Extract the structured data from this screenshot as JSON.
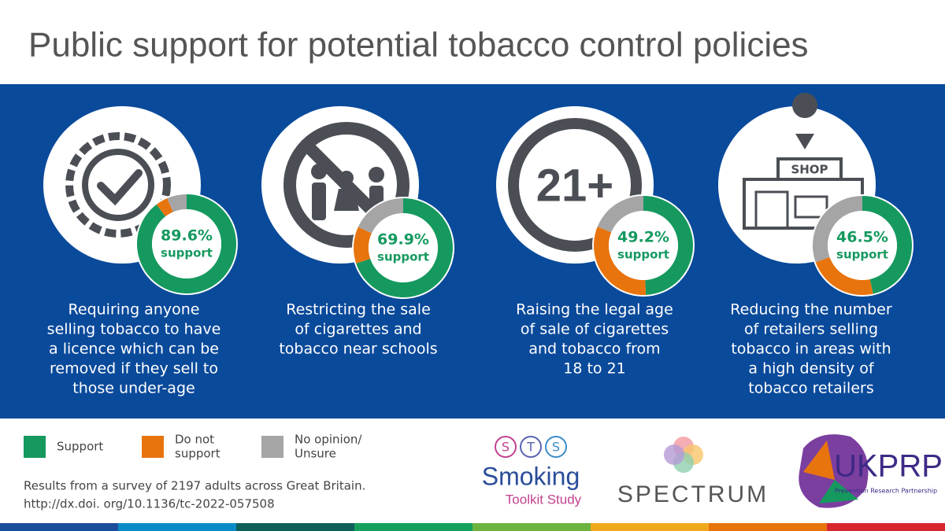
{
  "title": "Public support for potential tobacco control policies",
  "legend": {
    "categories": [
      [
        "Support"
      ],
      [
        "Do not",
        "support"
      ],
      [
        "No opinion/",
        "Unsure"
      ]
    ],
    "colors": [
      "#15995f",
      "#e8740e",
      "#a5a5a5"
    ]
  },
  "icon_texts": {
    "age": "21+",
    "shop": "SHOP"
  },
  "chart_data": [
    {
      "type": "donut",
      "values": [
        89.6,
        4,
        6.4
      ],
      "value_labels": [
        "89.6%",
        null,
        null
      ],
      "caption": "support",
      "description": [
        "Requiring anyone",
        "selling tobacco to have",
        "a licence which can be",
        "removed if they sell to",
        "those under-age"
      ]
    },
    {
      "type": "donut",
      "values": [
        69.9,
        12,
        18.1
      ],
      "value_labels": [
        "69.9%",
        null,
        null
      ],
      "caption": "support",
      "description": [
        "Restricting the sale",
        "of cigarettes and",
        "tobacco near schools"
      ]
    },
    {
      "type": "donut",
      "values": [
        49.2,
        32,
        18.8
      ],
      "value_labels": [
        "49.2%",
        null,
        null
      ],
      "caption": "support",
      "description": [
        "Raising the legal age",
        "of sale of cigarettes",
        "and tobacco from",
        "18 to 21"
      ]
    },
    {
      "type": "donut",
      "values": [
        46.5,
        23,
        30.5
      ],
      "value_labels": [
        "46.5%",
        null,
        null
      ],
      "caption": "support",
      "description": [
        "Reducing the number",
        "of retailers selling",
        "tobacco in areas with",
        "a high density of",
        "tobacco retailers"
      ]
    }
  ],
  "footer": {
    "note": [
      "Results from a survey of 2197 adults across Great Britain.",
      "http://dx.doi. org/10.1136/tc-2022-057508"
    ]
  },
  "logos": {
    "sts_letters": [
      "S",
      "T",
      "S"
    ],
    "sts_name": "Smoking",
    "sts_sub": "Toolkit Study",
    "spectrum": "SPECTRUM",
    "ukprp": "UKPRP",
    "ukprp_sub": "Prevention Research Partnership"
  }
}
